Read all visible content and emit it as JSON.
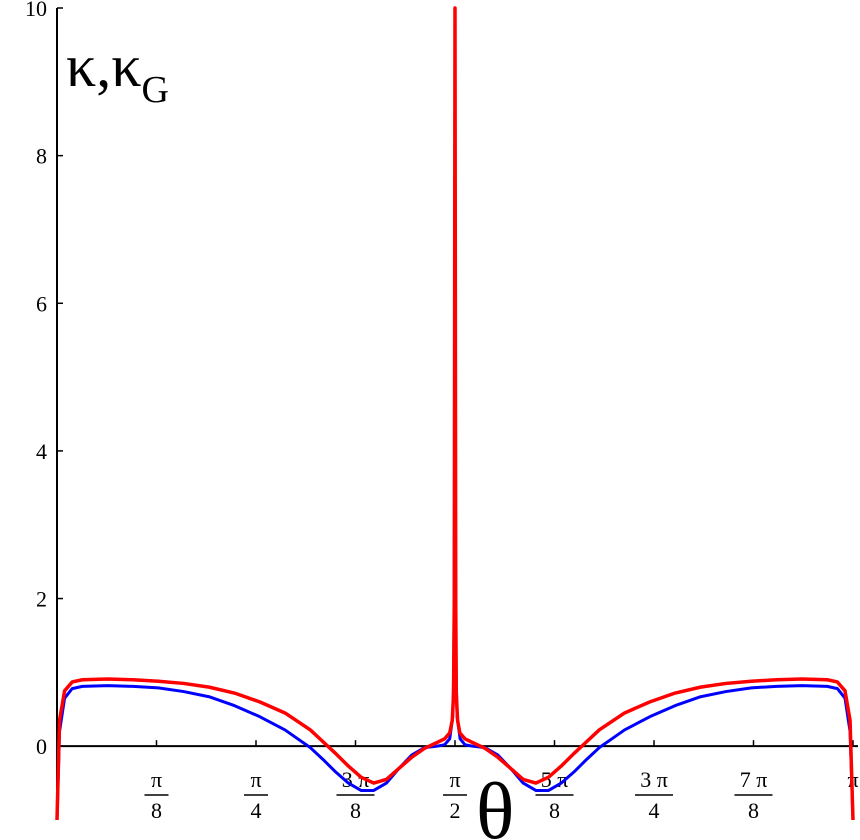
{
  "chart_data": {
    "type": "line",
    "ylabel": {
      "main": "κ,κ",
      "sub": "G"
    },
    "xlabel": "θ",
    "xlim": [
      0,
      3.14159265
    ],
    "ylim": [
      -1,
      10
    ],
    "grid": false,
    "y_ticks": [
      {
        "value": 0,
        "label": "0"
      },
      {
        "value": 2,
        "label": "2"
      },
      {
        "value": 4,
        "label": "4"
      },
      {
        "value": 6,
        "label": "6"
      },
      {
        "value": 8,
        "label": "8"
      },
      {
        "value": 10,
        "label": "10"
      }
    ],
    "x_ticks": [
      {
        "value": 0.3927,
        "num": "π",
        "den": "8"
      },
      {
        "value": 0.7854,
        "num": "π",
        "den": "4"
      },
      {
        "value": 1.1781,
        "num": "3 π",
        "den": "8"
      },
      {
        "value": 1.5708,
        "num": "π",
        "den": "2"
      },
      {
        "value": 1.9635,
        "num": "5 π",
        "den": "8"
      },
      {
        "value": 2.3562,
        "num": "3 π",
        "den": "4"
      },
      {
        "value": 2.7489,
        "num": "7 π",
        "den": "8"
      },
      {
        "value": 3.1416,
        "num": "π",
        "den": ""
      }
    ],
    "series": [
      {
        "color": "#ff0000",
        "x": [
          0.0,
          0.01,
          0.03,
          0.06,
          0.1,
          0.2,
          0.3,
          0.4,
          0.5,
          0.6,
          0.7,
          0.8,
          0.9,
          1.0,
          1.05,
          1.1,
          1.15,
          1.2,
          1.25,
          1.3,
          1.35,
          1.4,
          1.45,
          1.5,
          1.53,
          1.55,
          1.56,
          1.565,
          1.568,
          1.5708,
          1.5736,
          1.576,
          1.581,
          1.59,
          1.61,
          1.64,
          1.69,
          1.74,
          1.79,
          1.84,
          1.89,
          1.94,
          1.99,
          2.04,
          2.09,
          2.14,
          2.24,
          2.34,
          2.44,
          2.54,
          2.64,
          2.74,
          2.84,
          2.94,
          3.04,
          3.08,
          3.11,
          3.13,
          3.1416
        ],
        "y": [
          -1.0,
          0.35,
          0.75,
          0.87,
          0.9,
          0.91,
          0.9,
          0.88,
          0.85,
          0.8,
          0.72,
          0.6,
          0.45,
          0.22,
          0.06,
          -0.1,
          -0.27,
          -0.42,
          -0.5,
          -0.45,
          -0.3,
          -0.15,
          -0.03,
          0.05,
          0.1,
          0.18,
          0.35,
          0.7,
          2.0,
          10.0,
          2.0,
          0.7,
          0.35,
          0.18,
          0.1,
          0.05,
          -0.03,
          -0.15,
          -0.3,
          -0.45,
          -0.5,
          -0.42,
          -0.27,
          -0.1,
          0.06,
          0.22,
          0.45,
          0.6,
          0.72,
          0.8,
          0.85,
          0.88,
          0.9,
          0.91,
          0.9,
          0.87,
          0.75,
          0.35,
          -1.0
        ]
      },
      {
        "color": "#0000ff",
        "x": [
          0.0,
          0.01,
          0.03,
          0.06,
          0.1,
          0.2,
          0.3,
          0.4,
          0.5,
          0.6,
          0.7,
          0.8,
          0.9,
          0.95,
          1.0,
          1.05,
          1.1,
          1.15,
          1.2,
          1.25,
          1.3,
          1.35,
          1.4,
          1.45,
          1.5,
          1.53,
          1.55,
          1.562,
          1.566,
          1.5708,
          1.575,
          1.579,
          1.591,
          1.61,
          1.64,
          1.69,
          1.74,
          1.79,
          1.84,
          1.89,
          1.94,
          1.99,
          2.04,
          2.09,
          2.14,
          2.19,
          2.24,
          2.34,
          2.44,
          2.54,
          2.64,
          2.74,
          2.84,
          2.94,
          3.04,
          3.08,
          3.11,
          3.13,
          3.1416
        ],
        "y": [
          -1.0,
          0.2,
          0.65,
          0.78,
          0.81,
          0.82,
          0.81,
          0.79,
          0.74,
          0.67,
          0.55,
          0.4,
          0.22,
          0.1,
          -0.02,
          -0.18,
          -0.35,
          -0.5,
          -0.6,
          -0.6,
          -0.5,
          -0.3,
          -0.12,
          -0.02,
          0.0,
          0.02,
          0.1,
          0.4,
          1.0,
          4.8,
          1.0,
          0.4,
          0.1,
          0.02,
          0.0,
          -0.02,
          -0.12,
          -0.3,
          -0.5,
          -0.6,
          -0.6,
          -0.5,
          -0.35,
          -0.18,
          -0.02,
          0.1,
          0.22,
          0.4,
          0.55,
          0.67,
          0.74,
          0.79,
          0.81,
          0.82,
          0.81,
          0.78,
          0.65,
          0.2,
          -1.0
        ]
      }
    ]
  }
}
